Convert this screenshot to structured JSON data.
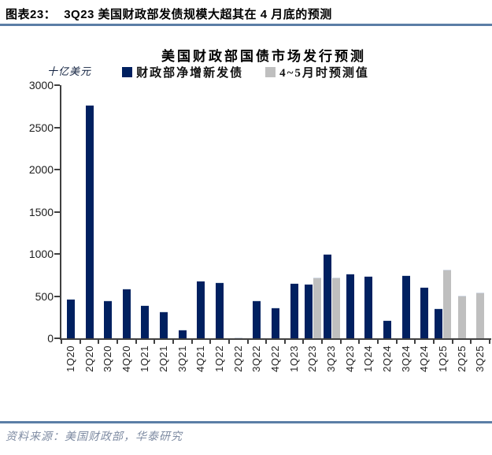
{
  "header": {
    "label": "图表23：",
    "title": "3Q23 美国财政部发债规模大超其在 4 月底的预测"
  },
  "chart_data": {
    "type": "bar",
    "title": "美国财政部国债市场发行预测",
    "unit_label": "十亿美元",
    "legend_position": "top",
    "grid": false,
    "ylim": [
      0,
      3000
    ],
    "yticks": [
      0,
      500,
      1000,
      1500,
      2000,
      2500,
      3000
    ],
    "categories": [
      "1Q20",
      "2Q20",
      "3Q20",
      "4Q20",
      "1Q21",
      "2Q21",
      "3Q21",
      "4Q21",
      "1Q22",
      "2Q22",
      "3Q22",
      "4Q22",
      "1Q23",
      "2Q23",
      "3Q23",
      "4Q23",
      "1Q24",
      "2Q24",
      "3Q24",
      "4Q24",
      "1Q25",
      "2Q25",
      "3Q25"
    ],
    "series": [
      {
        "name": "财政部净增新发债",
        "color": "#002060",
        "values": [
          470,
          2770,
          445,
          590,
          395,
          315,
          100,
          685,
          665,
          10,
          450,
          365,
          650,
          645,
          1005,
          765,
          740,
          220,
          750,
          610,
          355,
          null,
          null
        ]
      },
      {
        "name": "4~5月时预测值",
        "color": "#BFBFBF",
        "values": [
          null,
          null,
          null,
          null,
          null,
          null,
          null,
          null,
          null,
          null,
          null,
          null,
          null,
          720,
          720,
          null,
          null,
          null,
          null,
          null,
          810,
          505,
          540
        ]
      }
    ]
  },
  "footer": {
    "source": "资料来源：美国财政部，华泰研究"
  },
  "colors": {
    "accent_line": "#5B7EA6",
    "axis": "#404040",
    "bar_navy": "#002060",
    "bar_gray": "#BFBFBF"
  }
}
